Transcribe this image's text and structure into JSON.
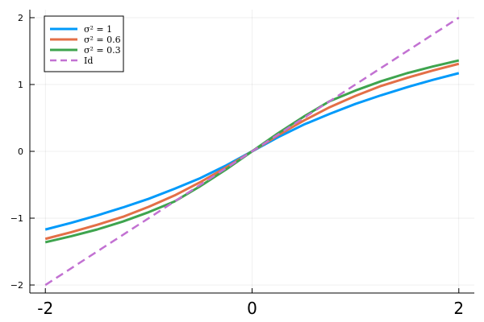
{
  "chart_data": {
    "type": "line",
    "title": "",
    "xlabel": "",
    "ylabel": "",
    "xlim": [
      -2.15,
      2.15
    ],
    "ylim": [
      -2.12,
      2.12
    ],
    "grid": true,
    "legend_position": "top-left",
    "x_ticks": [
      -2,
      0,
      2
    ],
    "x_tick_labels": [
      "-2",
      "0",
      "2"
    ],
    "y_ticks": [
      -2,
      -1,
      0,
      1,
      2
    ],
    "y_tick_labels": [
      "−2",
      "−1",
      "0",
      "1",
      "2"
    ],
    "x": [
      -2.0,
      -1.75,
      -1.5,
      -1.25,
      -1.0,
      -0.75,
      -0.5,
      -0.25,
      0.0,
      0.25,
      0.5,
      0.75,
      1.0,
      1.25,
      1.5,
      1.75,
      2.0
    ],
    "series": [
      {
        "name": "σ² = 1",
        "color": "#009AFA",
        "dash": "solid",
        "values": [
          -1.17,
          -1.07,
          -0.96,
          -0.84,
          -0.71,
          -0.56,
          -0.4,
          -0.21,
          0.0,
          0.21,
          0.4,
          0.56,
          0.71,
          0.84,
          0.96,
          1.07,
          1.17
        ]
      },
      {
        "name": "σ² = 0.6",
        "color": "#E36F47",
        "dash": "solid",
        "values": [
          -1.31,
          -1.21,
          -1.1,
          -0.98,
          -0.83,
          -0.66,
          -0.46,
          -0.24,
          0.0,
          0.24,
          0.46,
          0.66,
          0.83,
          0.98,
          1.1,
          1.21,
          1.31
        ]
      },
      {
        "name": "σ² = 0.3",
        "color": "#3EA44E",
        "dash": "solid",
        "values": [
          -1.36,
          -1.27,
          -1.17,
          -1.05,
          -0.91,
          -0.75,
          -0.52,
          -0.27,
          0.0,
          0.27,
          0.52,
          0.75,
          0.91,
          1.05,
          1.17,
          1.27,
          1.36
        ]
      },
      {
        "name": "Id",
        "color": "#C271D2",
        "dash": "dashed",
        "values": [
          -2.0,
          -1.75,
          -1.5,
          -1.25,
          -1.0,
          -0.75,
          -0.5,
          -0.25,
          0.0,
          0.25,
          0.5,
          0.75,
          1.0,
          1.25,
          1.5,
          1.75,
          2.0
        ]
      }
    ]
  }
}
